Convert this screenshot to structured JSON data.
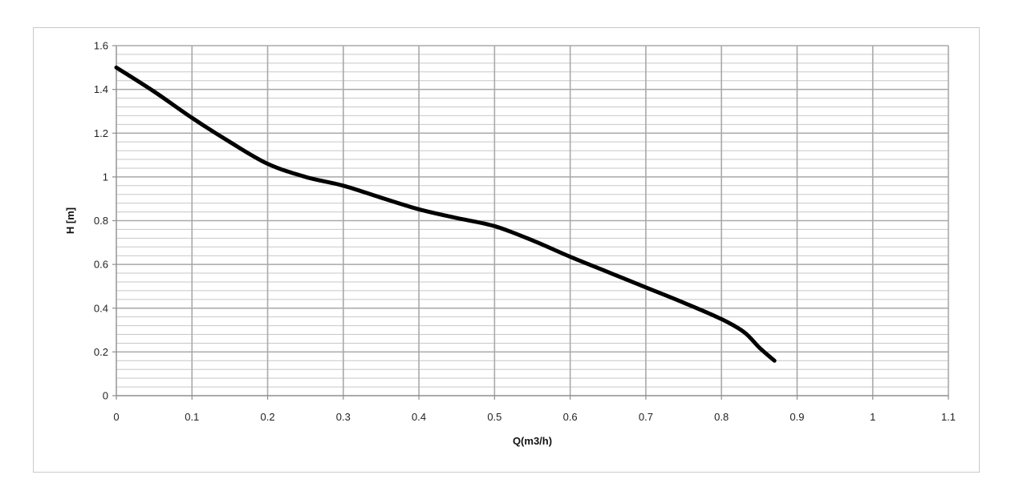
{
  "chart_data": {
    "type": "line",
    "title": "",
    "xlabel": "Q(m3/h)",
    "ylabel": "H [m]",
    "xlim": [
      0,
      1.1
    ],
    "ylim": [
      0,
      1.6
    ],
    "x_ticks": [
      "0",
      "0.1",
      "0.2",
      "0.3",
      "0.4",
      "0.5",
      "0.6",
      "0.7",
      "0.8",
      "0.9",
      "1",
      "1.1"
    ],
    "y_ticks": [
      "0",
      "0.2",
      "0.4",
      "0.6",
      "0.8",
      "1",
      "1.2",
      "1.4",
      "1.6"
    ],
    "x_tick_values": [
      0,
      0.1,
      0.2,
      0.3,
      0.4,
      0.5,
      0.6,
      0.7,
      0.8,
      0.9,
      1.0,
      1.1
    ],
    "y_tick_values": [
      0,
      0.2,
      0.4,
      0.6,
      0.8,
      1.0,
      1.2,
      1.4,
      1.6
    ],
    "major_x_step": 0.1,
    "major_y_step": 0.2,
    "minor_y_step": 0.04,
    "grid": true,
    "legend": "none",
    "colors": {
      "line": "#000000",
      "major_grid": "#a9a9a9",
      "minor_grid": "#c7c7c7",
      "frame": "#c9c9c9",
      "axis": "#8e8e8e"
    },
    "series": [
      {
        "x": [
          0,
          0.05,
          0.1,
          0.15,
          0.2,
          0.25,
          0.3,
          0.35,
          0.4,
          0.45,
          0.5,
          0.55,
          0.6,
          0.65,
          0.7,
          0.75,
          0.8,
          0.83,
          0.85,
          0.87
        ],
        "y": [
          1.5,
          1.39,
          1.27,
          1.16,
          1.06,
          1.0,
          0.96,
          0.905,
          0.852,
          0.812,
          0.775,
          0.71,
          0.635,
          0.565,
          0.495,
          0.425,
          0.35,
          0.29,
          0.22,
          0.16
        ]
      }
    ]
  }
}
